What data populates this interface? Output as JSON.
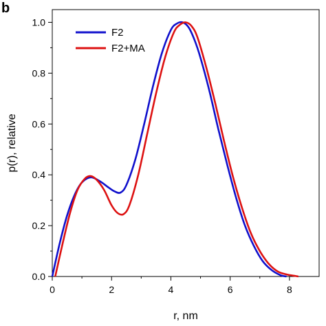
{
  "panel_label": "b",
  "chart_data": {
    "type": "line",
    "title": "",
    "xlabel": "r, nm",
    "ylabel": "p(r), relative",
    "xlim": [
      0,
      9
    ],
    "ylim": [
      0,
      1.05
    ],
    "x_ticks": [
      0,
      2,
      4,
      6,
      8
    ],
    "x_tick_labels": [
      "0",
      "2",
      "4",
      "6",
      "8"
    ],
    "y_ticks": [
      0.0,
      0.2,
      0.4,
      0.6,
      0.8,
      1.0
    ],
    "y_tick_labels": [
      "0.0",
      "0.2",
      "0.4",
      "0.6",
      "0.8",
      "1.0"
    ],
    "grid": false,
    "legend_position": "top-left",
    "series": [
      {
        "name": "F2",
        "color": "#1010cc",
        "x": [
          0,
          0.25,
          0.5,
          0.75,
          1.0,
          1.3,
          1.6,
          1.9,
          2.1,
          2.3,
          2.5,
          2.8,
          3.1,
          3.4,
          3.7,
          4.0,
          4.2,
          4.4,
          4.6,
          4.8,
          5.0,
          5.3,
          5.6,
          5.9,
          6.2,
          6.5,
          6.8,
          7.1,
          7.4,
          7.7,
          7.9
        ],
        "y": [
          0.0,
          0.13,
          0.24,
          0.32,
          0.37,
          0.39,
          0.375,
          0.35,
          0.335,
          0.33,
          0.36,
          0.46,
          0.6,
          0.75,
          0.88,
          0.97,
          0.995,
          1.0,
          0.98,
          0.93,
          0.86,
          0.73,
          0.58,
          0.44,
          0.31,
          0.2,
          0.12,
          0.06,
          0.025,
          0.005,
          0.0
        ]
      },
      {
        "name": "F2+MA",
        "color": "#dd1111",
        "x": [
          0.1,
          0.35,
          0.6,
          0.85,
          1.1,
          1.3,
          1.5,
          1.75,
          2.0,
          2.2,
          2.4,
          2.6,
          2.9,
          3.2,
          3.5,
          3.8,
          4.1,
          4.3,
          4.5,
          4.7,
          4.9,
          5.2,
          5.5,
          5.8,
          6.1,
          6.4,
          6.7,
          7.0,
          7.3,
          7.6,
          7.9,
          8.2,
          8.3
        ],
        "y": [
          0.0,
          0.13,
          0.25,
          0.34,
          0.385,
          0.395,
          0.38,
          0.34,
          0.28,
          0.25,
          0.245,
          0.28,
          0.4,
          0.56,
          0.72,
          0.86,
          0.96,
          0.99,
          1.0,
          0.985,
          0.94,
          0.82,
          0.68,
          0.53,
          0.39,
          0.27,
          0.17,
          0.1,
          0.05,
          0.02,
          0.008,
          0.002,
          0.0
        ]
      }
    ]
  }
}
